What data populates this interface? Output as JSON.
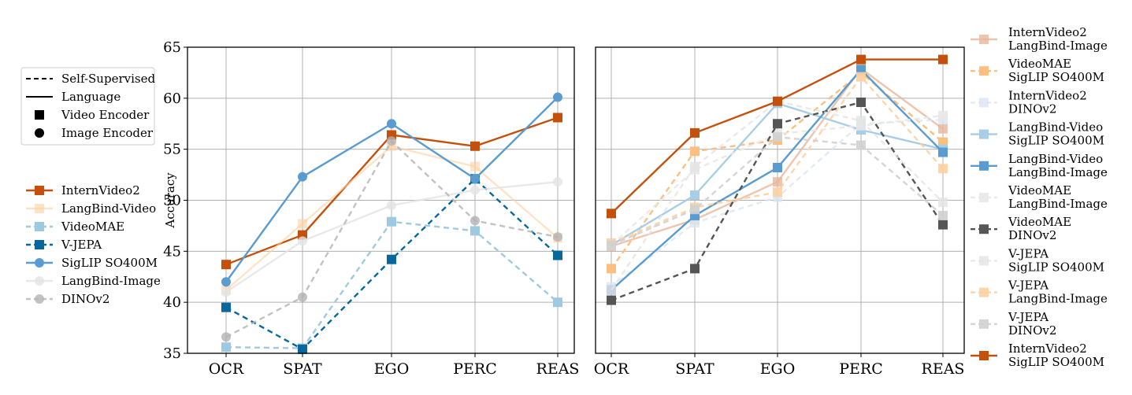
{
  "chart_data": [
    {
      "type": "line",
      "ylabel": "Accuracy",
      "ylim": [
        35,
        65
      ],
      "yticks": [
        35,
        40,
        45,
        50,
        55,
        60,
        65
      ],
      "categories": [
        "OCR",
        "SPAT",
        "EGO",
        "PERC",
        "REAS"
      ],
      "grid": true,
      "legend_placement": "left",
      "style_legend": [
        {
          "label": "Self-Supervised",
          "kind": "dashed-line"
        },
        {
          "label": "Language",
          "kind": "solid-line"
        },
        {
          "label": "Video Encoder",
          "kind": "square-marker"
        },
        {
          "label": "Image Encoder",
          "kind": "circle-marker"
        }
      ],
      "series": [
        {
          "name": "InternVideo2",
          "values": [
            43.7,
            46.6,
            56.4,
            55.3,
            58.1
          ],
          "color": "#c4500c",
          "alpha": 1.0,
          "dash": false,
          "marker": "square"
        },
        {
          "name": "LangBind-Video",
          "values": [
            41.2,
            47.7,
            55.3,
            53.3,
            46.3
          ],
          "color": "#fdd0a2",
          "alpha": 0.6,
          "dash": false,
          "marker": "square"
        },
        {
          "name": "VideoMAE",
          "values": [
            35.6,
            35.5,
            47.9,
            47.0,
            40.0
          ],
          "color": "#9ecae1",
          "alpha": 1.0,
          "dash": true,
          "marker": "square"
        },
        {
          "name": "V-JEPA",
          "values": [
            39.5,
            35.4,
            44.2,
            52.1,
            44.6
          ],
          "color": "#08689e",
          "alpha": 1.0,
          "dash": true,
          "marker": "square"
        },
        {
          "name": "SigLIP SO400M",
          "values": [
            42.0,
            52.3,
            57.5,
            52.1,
            60.1
          ],
          "color": "#5a9bd0",
          "alpha": 1.0,
          "dash": false,
          "marker": "circle"
        },
        {
          "name": "LangBind-Image",
          "values": [
            41.0,
            46.0,
            49.5,
            51.0,
            51.8
          ],
          "color": "#e3e3e3",
          "alpha": 0.8,
          "dash": false,
          "marker": "circle"
        },
        {
          "name": "DINOv2",
          "values": [
            36.6,
            40.5,
            55.8,
            48.0,
            46.4
          ],
          "color": "#b3b3b3",
          "alpha": 0.8,
          "dash": true,
          "marker": "circle"
        }
      ]
    },
    {
      "type": "line",
      "ylim": [
        35,
        65
      ],
      "categories": [
        "OCR",
        "SPAT",
        "EGO",
        "PERC",
        "REAS"
      ],
      "grid": true,
      "legend_placement": "right",
      "series": [
        {
          "name": "InternVideo2\nLangBind-Image",
          "values": [
            45.5,
            48.1,
            51.8,
            62.9,
            57.0
          ],
          "color": "#e8b69b",
          "alpha": 0.8,
          "dash": false,
          "marker": "square"
        },
        {
          "name": "VideoMAE\nSigLIP SO400M",
          "values": [
            43.3,
            54.8,
            55.9,
            62.5,
            55.7
          ],
          "color": "#fdbf80",
          "alpha": 1.0,
          "dash": true,
          "marker": "square"
        },
        {
          "name": "InternVideo2\nDINOv2",
          "values": [
            41.5,
            47.8,
            50.3,
            57.5,
            57.9
          ],
          "color": "#dbe5f3",
          "alpha": 0.8,
          "dash": true,
          "marker": "square"
        },
        {
          "name": "LangBind-Video\nSigLIP SO400M",
          "values": [
            45.6,
            50.5,
            59.5,
            56.9,
            55.0
          ],
          "color": "#a8cde6",
          "alpha": 1.0,
          "dash": false,
          "marker": "square"
        },
        {
          "name": "LangBind-Video\nLangBind-Image",
          "values": [
            41.2,
            48.5,
            53.2,
            62.8,
            54.7
          ],
          "color": "#5a9bd0",
          "alpha": 1.0,
          "dash": false,
          "marker": "square"
        },
        {
          "name": "VideoMAE\nLangBind-Image",
          "values": [
            45.6,
            53.0,
            56.5,
            57.3,
            58.3
          ],
          "color": "#e8e8e8",
          "alpha": 0.9,
          "dash": true,
          "marker": "square"
        },
        {
          "name": "VideoMAE\nDINOv2",
          "values": [
            40.2,
            43.3,
            57.5,
            59.6,
            47.6
          ],
          "color": "#555555",
          "alpha": 1.0,
          "dash": true,
          "marker": "square"
        },
        {
          "name": "V-JEPA\nSigLIP SO400M",
          "values": [
            41.2,
            53.3,
            59.7,
            57.8,
            49.8
          ],
          "color": "#e3e3e3",
          "alpha": 0.8,
          "dash": true,
          "marker": "square"
        },
        {
          "name": "V-JEPA\nLangBind-Image",
          "values": [
            45.8,
            49.3,
            50.8,
            62.1,
            53.1
          ],
          "color": "#fdd0a2",
          "alpha": 0.9,
          "dash": true,
          "marker": "square"
        },
        {
          "name": "V-JEPA\nDINOv2",
          "values": [
            45.6,
            49.1,
            56.2,
            55.4,
            48.5
          ],
          "color": "#d0d0d0",
          "alpha": 0.9,
          "dash": true,
          "marker": "square"
        },
        {
          "name": "InternVideo2\nSigLIP SO400M",
          "values": [
            48.7,
            56.6,
            59.7,
            63.8,
            63.8
          ],
          "color": "#c4500c",
          "alpha": 1.0,
          "dash": false,
          "marker": "square"
        }
      ]
    }
  ]
}
